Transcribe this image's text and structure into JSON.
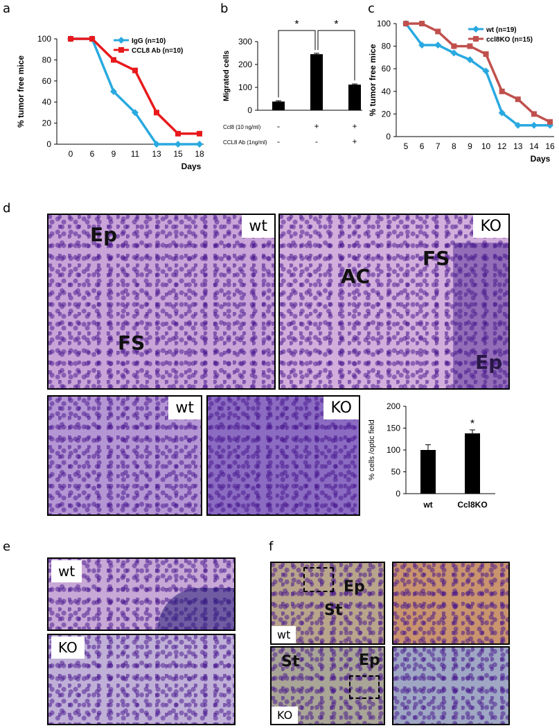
{
  "panel_labels": {
    "a": "a",
    "b": "b",
    "c": "c",
    "d": "d",
    "e": "e",
    "f": "f"
  },
  "chart_data": [
    {
      "id": "a",
      "type": "line",
      "title": "",
      "ylabel": "% tumor free mice",
      "xlabel": "Days",
      "categories": [
        "0",
        "6",
        "9",
        "11",
        "13",
        "15",
        "18"
      ],
      "ylim": [
        0,
        100
      ],
      "yticks": [
        0,
        20,
        40,
        60,
        80,
        100
      ],
      "legend": "top-right",
      "series": [
        {
          "name": "IgG (n=10)",
          "color": "#29a9e0",
          "marker": "diamond",
          "values": [
            100,
            100,
            50,
            30,
            0,
            0,
            0
          ]
        },
        {
          "name": "CCL8 Ab (n=10)",
          "color": "#e8191c",
          "marker": "square",
          "values": [
            100,
            100,
            80,
            70,
            30,
            10,
            10
          ]
        }
      ]
    },
    {
      "id": "b",
      "type": "bar",
      "ylabel": "Migrated cells",
      "ylim": [
        0,
        300
      ],
      "yticks": [
        0,
        100,
        200,
        300
      ],
      "values": [
        38,
        245,
        112
      ],
      "errors": [
        3,
        4,
        3
      ],
      "significance": [
        "*",
        "*"
      ],
      "conditions": [
        {
          "label": "Ccl8 (10 ng/ml)",
          "signs": [
            "-",
            "+",
            "+"
          ]
        },
        {
          "label": "CCL8 Ab (1ng/ml)",
          "signs": [
            "-",
            "-",
            "+"
          ]
        }
      ]
    },
    {
      "id": "c",
      "type": "line",
      "ylabel": "% tumor free mice",
      "xlabel": "Days",
      "categories": [
        "5",
        "6",
        "7",
        "8",
        "9",
        "10",
        "12",
        "13",
        "14",
        "16"
      ],
      "ylim": [
        0,
        100
      ],
      "yticks": [
        0,
        20,
        40,
        60,
        80,
        100
      ],
      "legend": "top-right",
      "series": [
        {
          "name": "wt (n=19)",
          "color": "#29a9e0",
          "marker": "diamond",
          "values": [
            100,
            81,
            81,
            74,
            68,
            58,
            21,
            10,
            10,
            10
          ]
        },
        {
          "name": "ccl8KO (n=15)",
          "color": "#c0504d",
          "marker": "square",
          "values": [
            100,
            100,
            93,
            80,
            80,
            73,
            40,
            33,
            20,
            13
          ]
        }
      ]
    },
    {
      "id": "d",
      "type": "bar",
      "ylabel": "% cells /optic field",
      "categories": [
        "wt",
        "Ccl8KO"
      ],
      "values": [
        100,
        138
      ],
      "errors": [
        12,
        8
      ],
      "ylim": [
        0,
        200
      ],
      "yticks": [
        0,
        50,
        100,
        150,
        200
      ],
      "significance": [
        "",
        "*"
      ]
    }
  ],
  "micrographs": {
    "d_top_wt": {
      "tag": "wt",
      "labels": [
        "Ep",
        "FS"
      ]
    },
    "d_top_ko": {
      "tag": "KO",
      "labels": [
        "AC",
        "FS",
        "Ep"
      ]
    },
    "d_bot_wt": {
      "tag": "wt"
    },
    "d_bot_ko": {
      "tag": "KO"
    },
    "e_wt": {
      "tag": "wt"
    },
    "e_ko": {
      "tag": "KO"
    },
    "f_wt": {
      "tag": "wt",
      "labels": [
        "Ep",
        "St"
      ]
    },
    "f_ko": {
      "tag": "KO",
      "labels": [
        "St",
        "Ep"
      ]
    }
  }
}
